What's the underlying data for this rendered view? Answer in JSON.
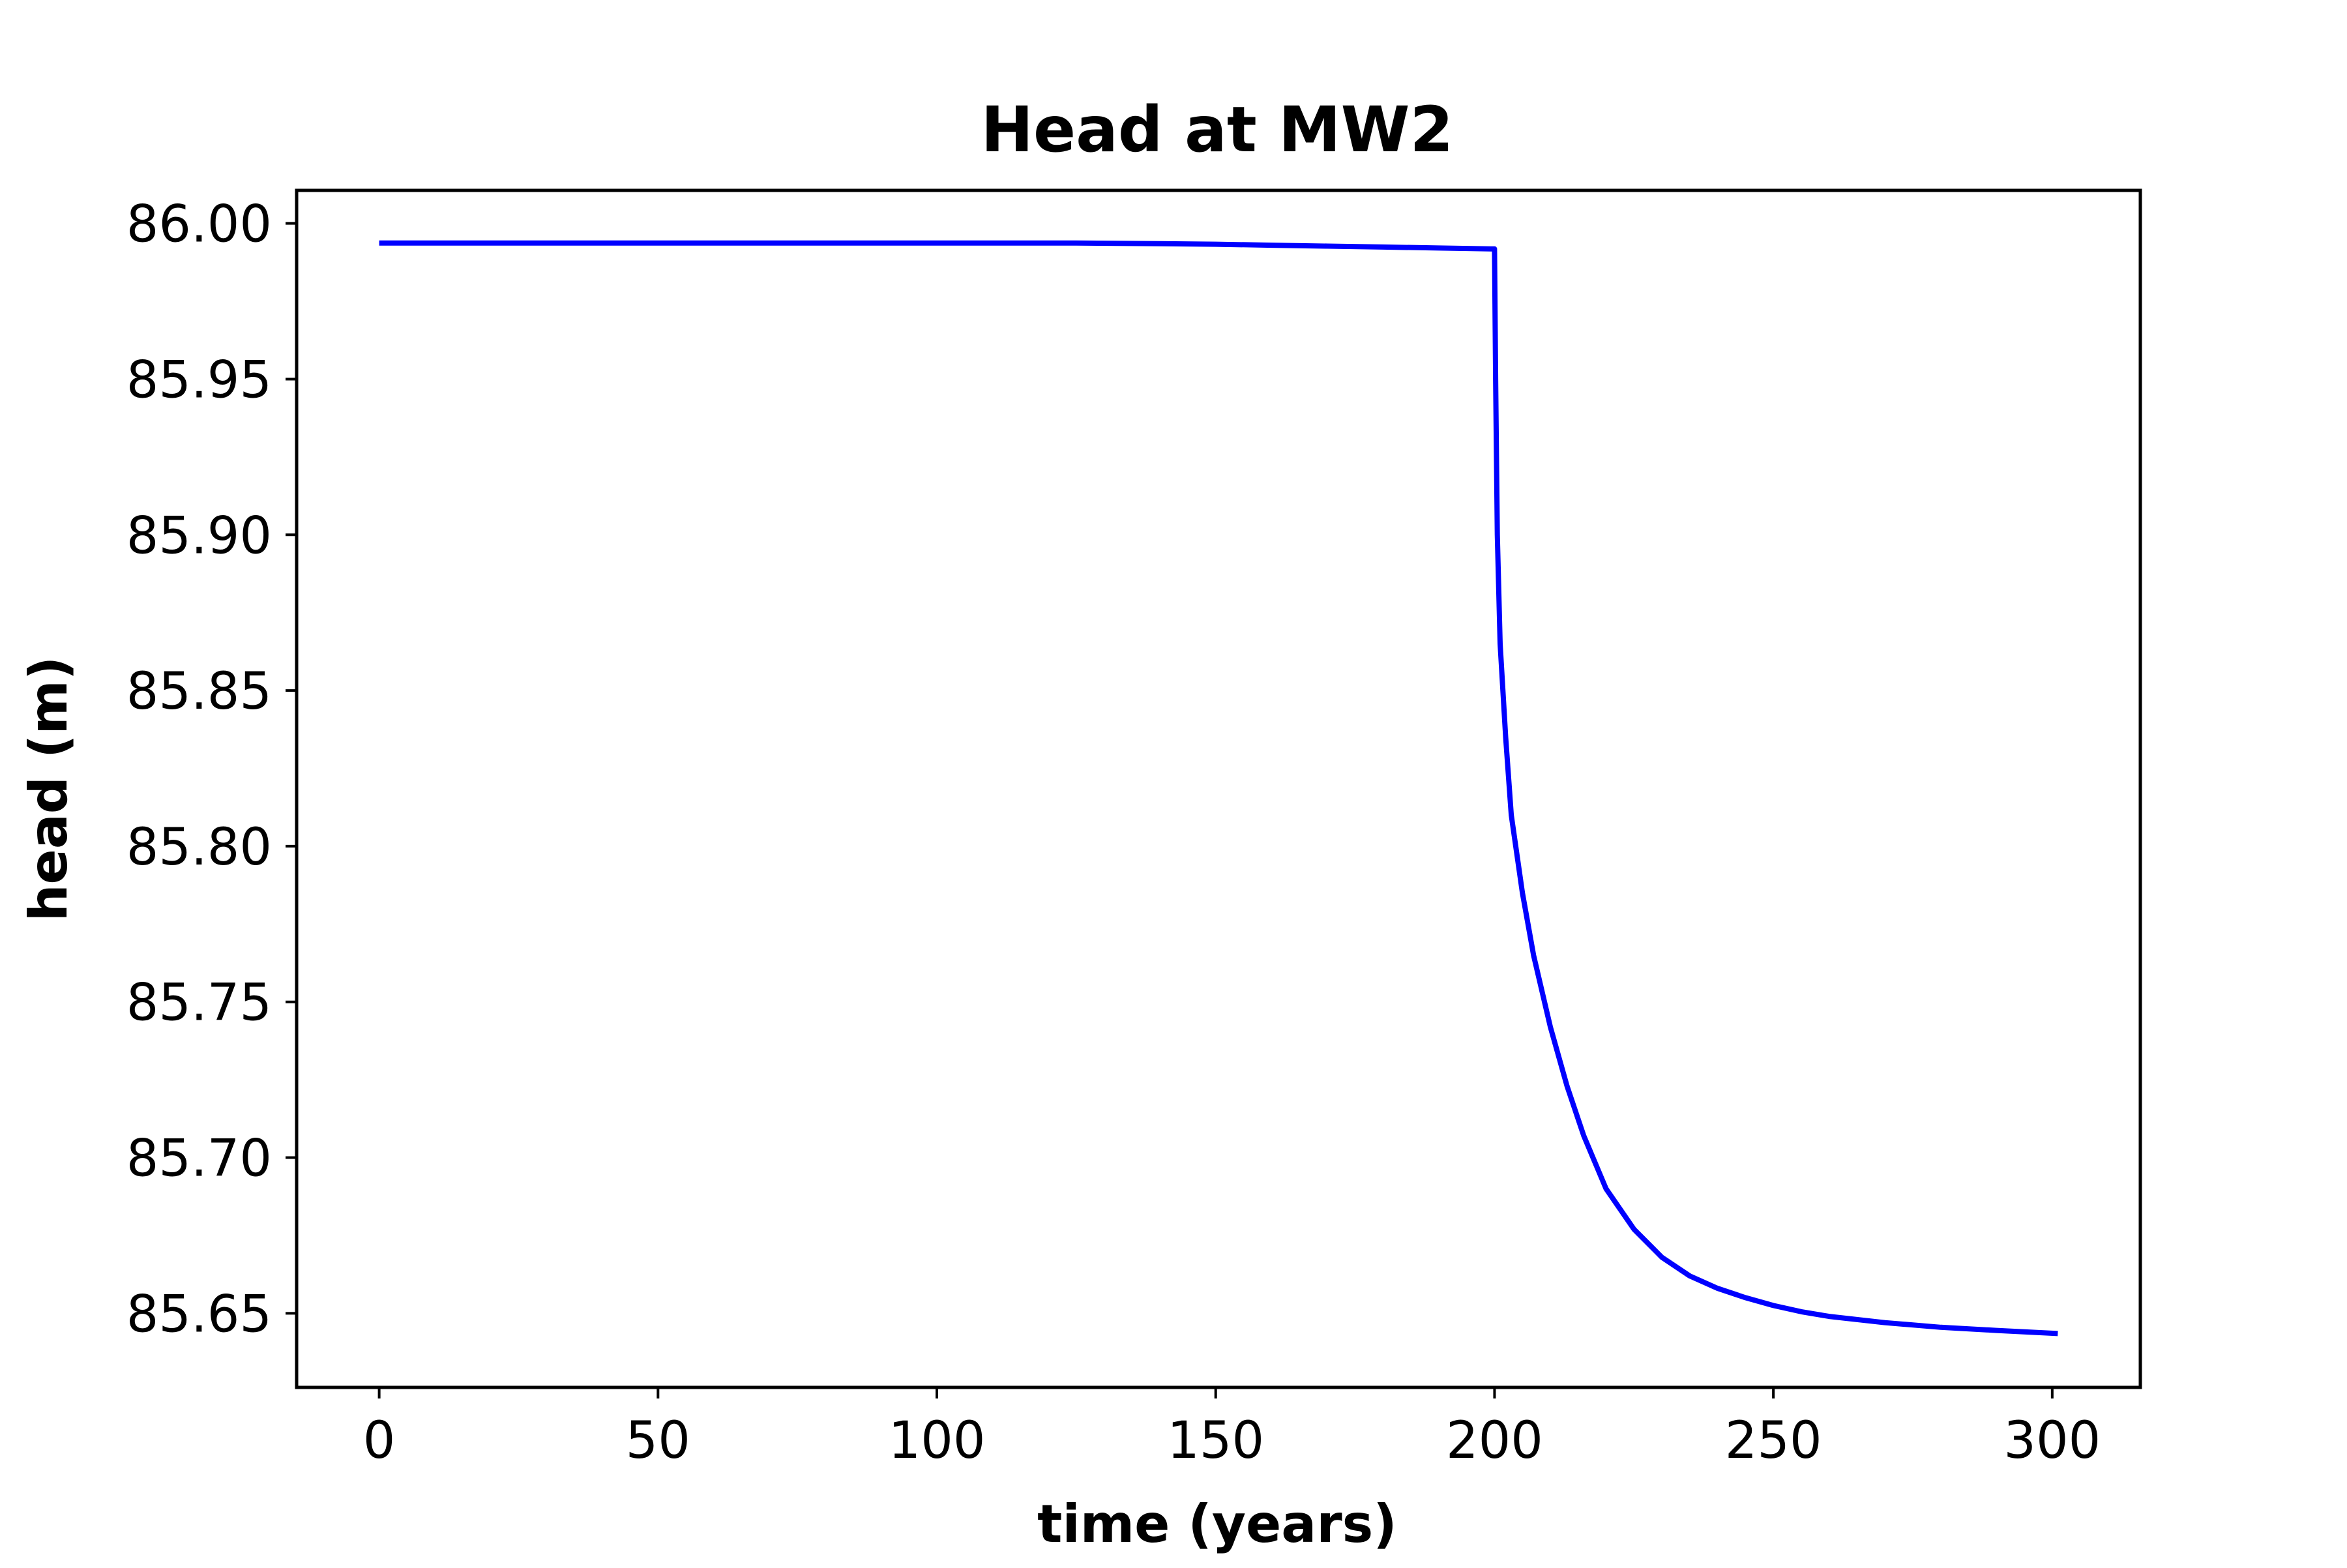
{
  "chart_data": {
    "type": "line",
    "title": "Head at MW2",
    "xlabel": "time (years)",
    "ylabel": "head (m)",
    "xlim": [
      -14.8,
      315.8
    ],
    "ylim": [
      85.6262,
      86.0106
    ],
    "xticks": [
      0,
      50,
      100,
      150,
      200,
      250,
      300
    ],
    "yticks": [
      85.65,
      85.7,
      85.75,
      85.8,
      85.85,
      85.9,
      85.95,
      86.0
    ],
    "ytick_labels": [
      "85.65",
      "85.70",
      "85.75",
      "85.80",
      "85.85",
      "85.90",
      "85.95",
      "86.00"
    ],
    "grid": false,
    "legend": "none",
    "series": [
      {
        "color": "#0000ff",
        "x": [
          0,
          25,
          50,
          75,
          100,
          125,
          140,
          150,
          160,
          170,
          180,
          190,
          200,
          200.2,
          200.5,
          201,
          202,
          203,
          205,
          207,
          210,
          213,
          216,
          220,
          225,
          230,
          235,
          240,
          245,
          250,
          255,
          260,
          270,
          280,
          290,
          301
        ],
        "y": [
          85.9937,
          85.9937,
          85.9937,
          85.9937,
          85.9937,
          85.9937,
          85.9935,
          85.9933,
          85.993,
          85.9927,
          85.9924,
          85.9921,
          85.9918,
          85.95,
          85.9,
          85.865,
          85.835,
          85.81,
          85.785,
          85.765,
          85.742,
          85.723,
          85.707,
          85.69,
          85.677,
          85.668,
          85.662,
          85.658,
          85.655,
          85.6525,
          85.6505,
          85.649,
          85.647,
          85.6455,
          85.6445,
          85.6435
        ]
      }
    ]
  }
}
